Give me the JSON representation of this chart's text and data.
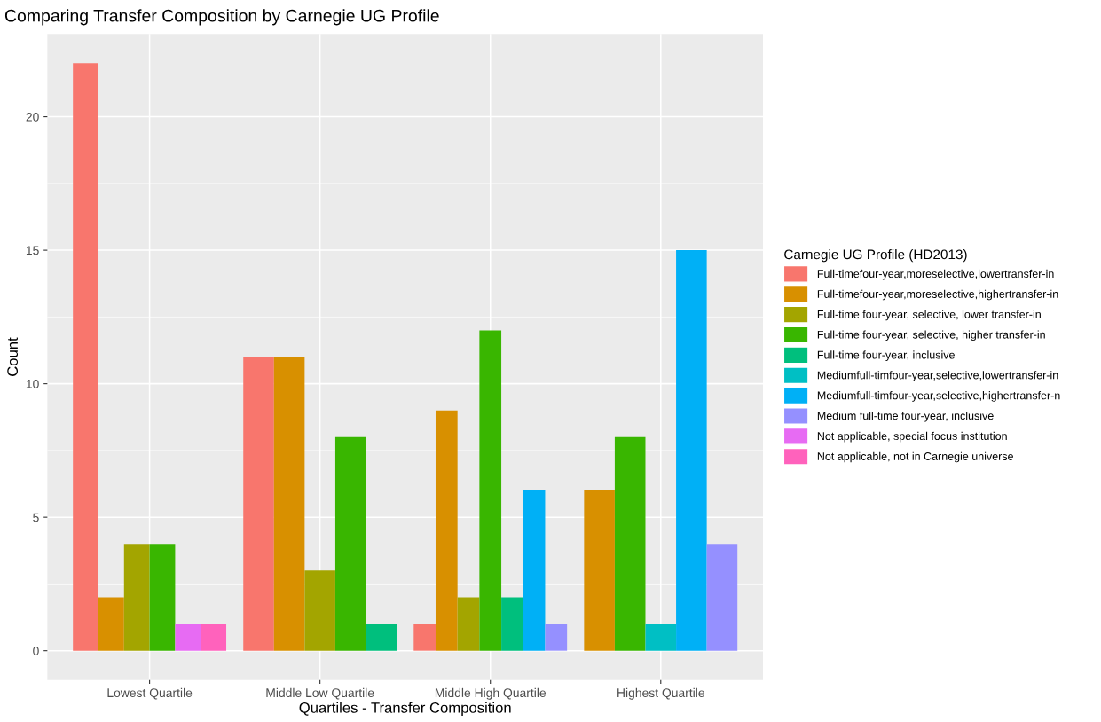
{
  "chart_data": {
    "type": "bar",
    "title": "Comparing Transfer Composition by Carnegie UG Profile",
    "xlabel": "Quartiles - Transfer Composition",
    "ylabel": "Count",
    "legend_title": "Carnegie UG Profile (HD2013)",
    "categories": [
      "Lowest Quartile",
      "Middle Low Quartile",
      "Middle High Quartile",
      "Highest Quartile"
    ],
    "series": [
      {
        "name": "Full-timefour-year,moreselective,lowertransfer-in",
        "color": "#f8766d",
        "values": [
          22,
          11,
          1,
          null
        ]
      },
      {
        "name": "Full-timefour-year,moreselective,highertransfer-in",
        "color": "#d89000",
        "values": [
          2,
          11,
          9,
          6
        ]
      },
      {
        "name": "Full-time four-year, selective, lower transfer-in",
        "color": "#a3a500",
        "values": [
          4,
          3,
          2,
          null
        ]
      },
      {
        "name": "Full-time four-year, selective, higher transfer-in",
        "color": "#39b600",
        "values": [
          4,
          8,
          12,
          8
        ]
      },
      {
        "name": "Full-time four-year, inclusive",
        "color": "#00bf7d",
        "values": [
          null,
          1,
          2,
          null
        ]
      },
      {
        "name": "Mediumfull-timfour-year,selective,lowertransfer-in",
        "color": "#00bfc4",
        "values": [
          null,
          null,
          null,
          1
        ]
      },
      {
        "name": "Mediumfull-timfour-year,selective,highertransfer-n",
        "color": "#00b0f6",
        "values": [
          null,
          null,
          6,
          15
        ]
      },
      {
        "name": "Medium full-time four-year, inclusive",
        "color": "#9590ff",
        "values": [
          null,
          null,
          1,
          4
        ]
      },
      {
        "name": "Not applicable, special focus institution",
        "color": "#e76bf3",
        "values": [
          1,
          null,
          null,
          null
        ]
      },
      {
        "name": "Not applicable, not in Carnegie universe",
        "color": "#ff62bc",
        "values": [
          1,
          null,
          null,
          null
        ]
      }
    ],
    "ylim": [
      -1.1,
      23.1
    ],
    "yticks": [
      0,
      5,
      10,
      15,
      20
    ],
    "grid": true,
    "legend": "right"
  }
}
